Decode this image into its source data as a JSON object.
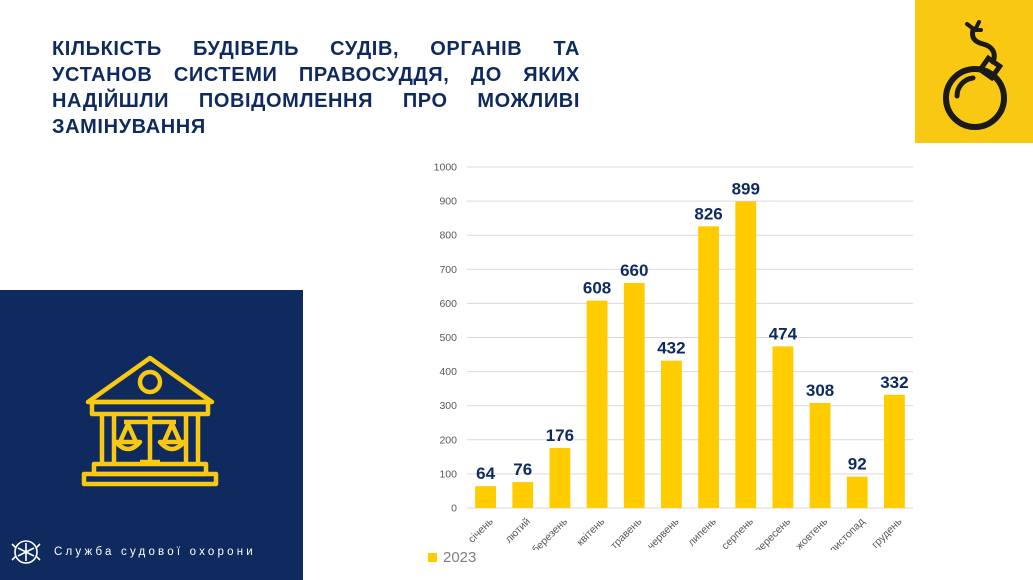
{
  "title": "Кількість будівель судів, органів та установ системи правосуддя, до яких надійшли повідомлення про можливі замінування",
  "organization": "Служба судової охорони",
  "icons": {
    "bomb": "bomb-icon",
    "court": "courthouse-scales-icon",
    "emblem": "emblem-icon"
  },
  "colors": {
    "navy": "#0f2a5e",
    "yellow": "#f8c813",
    "bar": "#ffcc00",
    "label": "#0f2a5e"
  },
  "chart_data": {
    "type": "bar",
    "categories": [
      "січень",
      "лютий",
      "березень",
      "квітень",
      "травень",
      "червень",
      "липень",
      "серпень",
      "вересень",
      "жовтень",
      "листопад",
      "грудень"
    ],
    "series": [
      {
        "name": "2023",
        "values": [
          64,
          76,
          176,
          608,
          660,
          432,
          826,
          899,
          474,
          308,
          92,
          332
        ]
      }
    ],
    "ylim": [
      0,
      1000
    ],
    "yticks": [
      0,
      100,
      200,
      300,
      400,
      500,
      600,
      700,
      800,
      900,
      1000
    ],
    "grid": true,
    "legend": "bottom-left",
    "data_labels": true
  }
}
